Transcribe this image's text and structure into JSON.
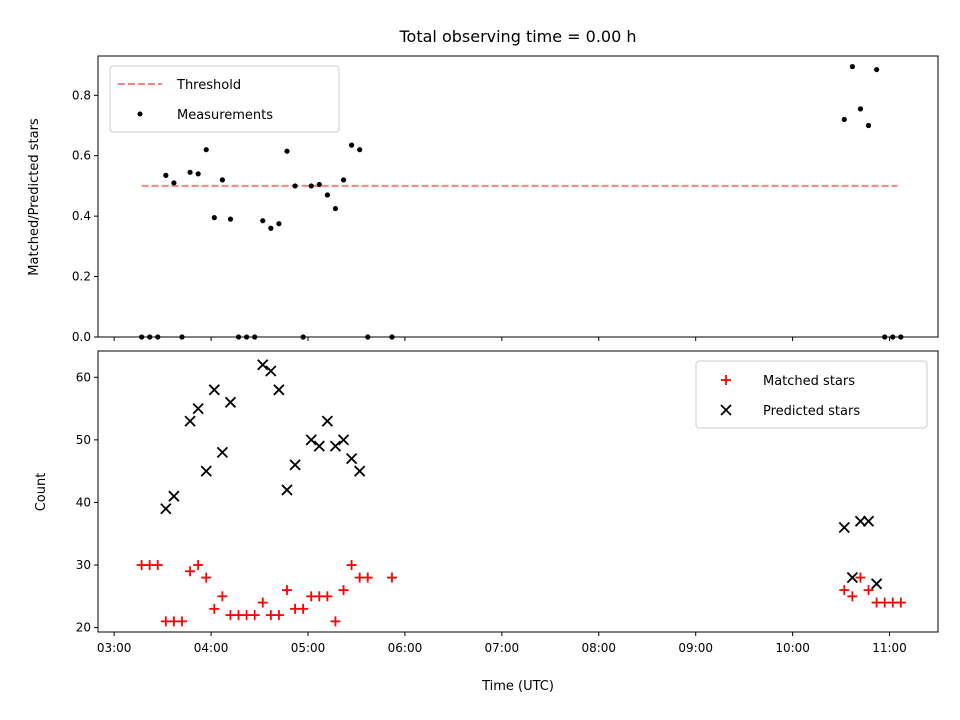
{
  "chart_data": {
    "title": "Total observing time = 0.00 h",
    "xlabel": "Time (UTC)",
    "x_ticks": [
      "03:00",
      "04:00",
      "05:00",
      "06:00",
      "07:00",
      "08:00",
      "09:00",
      "10:00",
      "11:00"
    ],
    "xlim": [
      "02:50",
      "11:30"
    ],
    "panels": [
      {
        "type": "scatter",
        "ylabel": "Matched/Predicted stars",
        "ylim": [
          0,
          0.93
        ],
        "y_ticks": [
          "0.0",
          "0.2",
          "0.4",
          "0.6",
          "0.8"
        ],
        "legend_position": "upper-left",
        "series": [
          {
            "name": "Threshold",
            "style": "dashed-line",
            "color": "#ff7f7f",
            "x": [
              "03:17",
              "11:05"
            ],
            "y": [
              0.5,
              0.5
            ]
          },
          {
            "name": "Measurements",
            "style": "dot",
            "color": "#000000",
            "x": [
              "03:17",
              "03:22",
              "03:27",
              "03:32",
              "03:37",
              "03:42",
              "03:47",
              "03:52",
              "03:57",
              "04:02",
              "04:07",
              "04:12",
              "04:17",
              "04:22",
              "04:27",
              "04:32",
              "04:37",
              "04:42",
              "04:47",
              "04:52",
              "04:57",
              "05:02",
              "05:07",
              "05:12",
              "05:17",
              "05:22",
              "05:27",
              "05:32",
              "05:37",
              "05:52",
              "10:32",
              "10:37",
              "10:42",
              "10:47",
              "10:52",
              "10:57",
              "11:02",
              "11:07"
            ],
            "y": [
              0.0,
              0.0,
              0.0,
              0.535,
              0.51,
              0.0,
              0.545,
              0.54,
              0.62,
              0.395,
              0.52,
              0.39,
              0.0,
              0.0,
              0.0,
              0.385,
              0.36,
              0.375,
              0.615,
              0.5,
              0.0,
              0.5,
              0.505,
              0.47,
              0.425,
              0.52,
              0.635,
              0.62,
              0.0,
              0.0,
              0.72,
              0.895,
              0.755,
              0.7,
              0.885,
              0.0,
              0.0,
              0.0
            ]
          }
        ]
      },
      {
        "type": "scatter",
        "ylabel": "Count",
        "ylim": [
          19.3,
          64.2
        ],
        "y_ticks": [
          "20",
          "30",
          "40",
          "50",
          "60"
        ],
        "legend_position": "upper-right",
        "series": [
          {
            "name": "Matched stars",
            "marker": "plus",
            "color": "#ff0000",
            "x": [
              "03:17",
              "03:22",
              "03:27",
              "03:32",
              "03:37",
              "03:42",
              "03:47",
              "03:52",
              "03:57",
              "04:02",
              "04:07",
              "04:12",
              "04:17",
              "04:22",
              "04:27",
              "04:32",
              "04:37",
              "04:42",
              "04:47",
              "04:52",
              "04:57",
              "05:02",
              "05:07",
              "05:12",
              "05:17",
              "05:22",
              "05:27",
              "05:32",
              "05:37",
              "05:52",
              "10:32",
              "10:37",
              "10:42",
              "10:47",
              "10:52",
              "10:57",
              "11:02",
              "11:07"
            ],
            "y": [
              30,
              30,
              30,
              21,
              21,
              21,
              29,
              30,
              28,
              23,
              25,
              22,
              22,
              22,
              22,
              24,
              22,
              22,
              26,
              23,
              23,
              25,
              25,
              25,
              21,
              26,
              30,
              28,
              28,
              28,
              26,
              25,
              28,
              26,
              24,
              24,
              24,
              24
            ]
          },
          {
            "name": "Predicted stars",
            "marker": "x",
            "color": "#000000",
            "x": [
              "03:32",
              "03:37",
              "03:47",
              "03:52",
              "03:57",
              "04:02",
              "04:07",
              "04:12",
              "04:32",
              "04:37",
              "04:42",
              "04:47",
              "04:52",
              "05:02",
              "05:07",
              "05:12",
              "05:17",
              "05:22",
              "05:27",
              "05:32",
              "10:32",
              "10:37",
              "10:42",
              "10:47",
              "10:52"
            ],
            "y": [
              39,
              41,
              53,
              55,
              45,
              58,
              48,
              56,
              62,
              61,
              58,
              42,
              46,
              50,
              49,
              53,
              49,
              50,
              47,
              45,
              36,
              28,
              37,
              37,
              27
            ]
          }
        ]
      }
    ]
  }
}
